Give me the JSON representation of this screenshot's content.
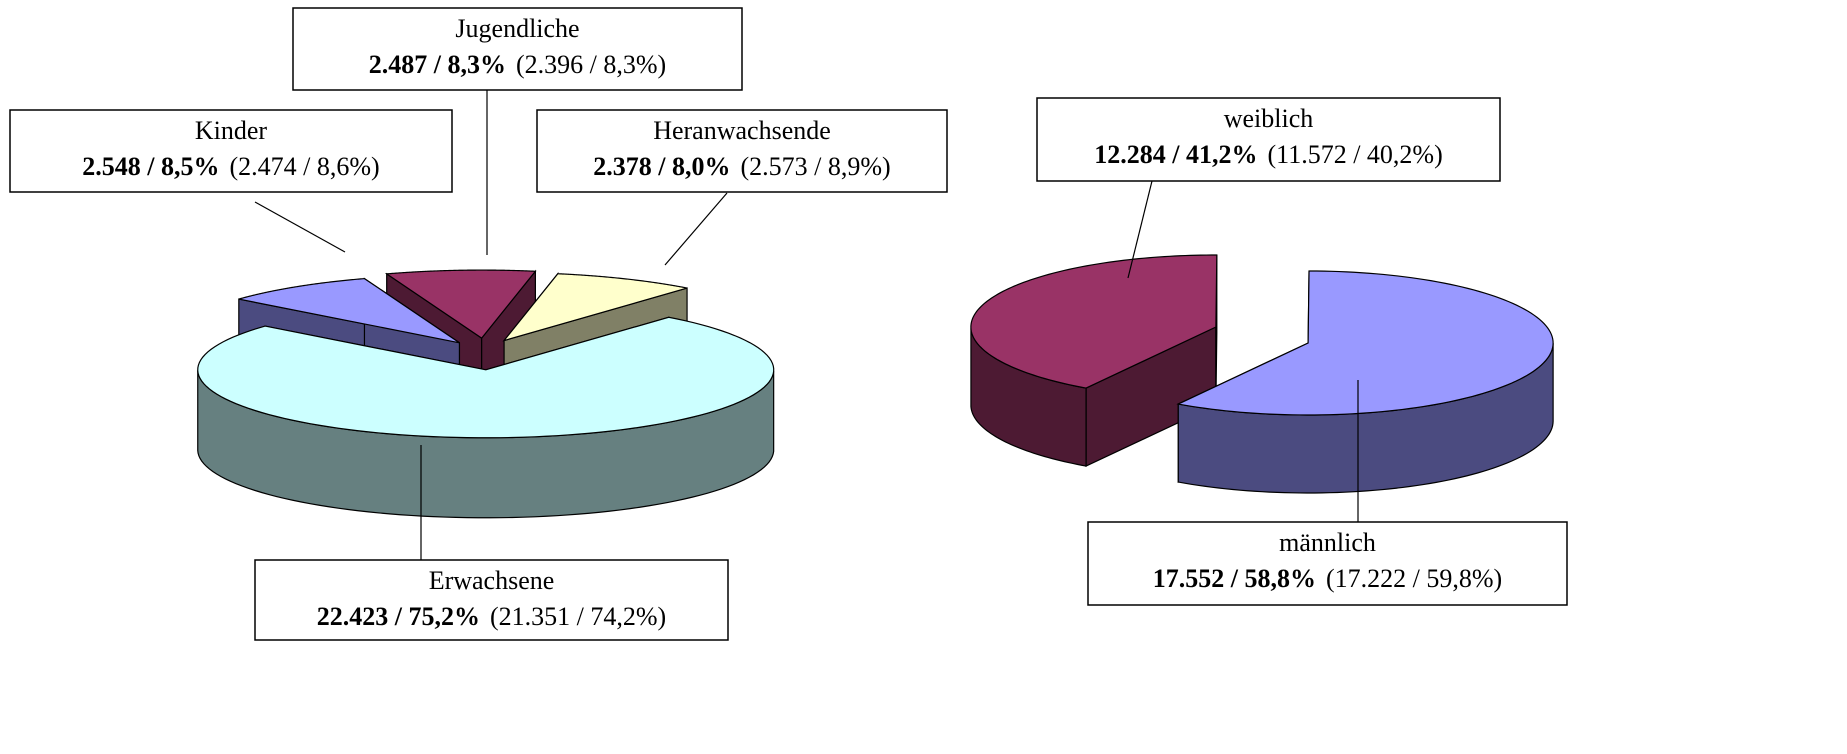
{
  "chart_data": [
    {
      "type": "pie",
      "categories": [
        "Kinder",
        "Jugendliche",
        "Heranwachsende",
        "Erwachsene"
      ],
      "values": [
        2548,
        2487,
        2378,
        22423
      ],
      "value_labels": [
        "2.548 / 8,5%",
        "2.487 / 8,3%",
        "2.378 / 8,0%",
        "22.423 / 75,2%"
      ],
      "previous_labels": [
        "(2.474 / 8,6%)",
        "(2.396 / 8,3%)",
        "(2.573 / 8,9%)",
        "(21.351 / 74,2%)"
      ],
      "colors": [
        "#9999ff",
        "#993366",
        "#ffffcc",
        "#ccffff"
      ],
      "side_colors": [
        "#4b4b80",
        "#4d1a33",
        "#808066",
        "#668080"
      ]
    },
    {
      "type": "pie",
      "categories": [
        "weiblich",
        "männlich"
      ],
      "values": [
        12284,
        17552
      ],
      "value_labels": [
        "12.284 / 41,2%",
        "17.552 / 58,8%"
      ],
      "previous_labels": [
        "(11.572 / 40,2%)",
        "(17.222 / 59,8%)"
      ],
      "colors": [
        "#993366",
        "#9999ff"
      ],
      "side_colors": [
        "#4d1a33",
        "#4b4b80"
      ]
    }
  ]
}
